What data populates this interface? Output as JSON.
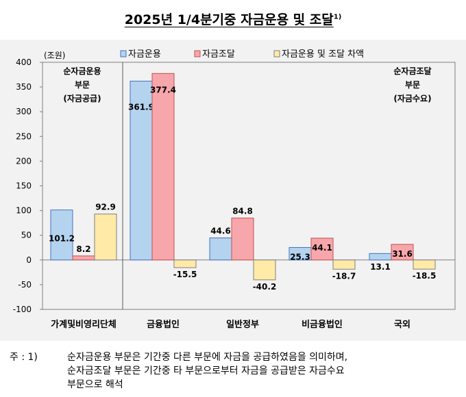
{
  "title": "2025년 1/4분기중 자금운용 및 조달",
  "title_sup": "1)",
  "chart_data": {
    "type": "bar",
    "unit_label": "(조원)",
    "categories": [
      "가계및비영리단체",
      "금융법인",
      "일반정부",
      "비금융법인",
      "국외"
    ],
    "series": [
      {
        "name": "자금운용",
        "values": [
          101.2,
          361.9,
          44.6,
          25.3,
          13.1
        ],
        "color": "#b4d3ee",
        "stroke": "#4472c4"
      },
      {
        "name": "자금조달",
        "values": [
          8.2,
          377.4,
          84.8,
          44.1,
          31.6
        ],
        "color": "#f7a7ab",
        "stroke": "#c0504d"
      },
      {
        "name": "자금운용 및 조달 차액",
        "values": [
          92.9,
          -15.5,
          -40.2,
          -18.7,
          -18.5
        ],
        "color": "#ffeaa8",
        "stroke": "#7f7f7f"
      }
    ],
    "ylim": [
      -100,
      400
    ],
    "yticks": [
      400,
      350,
      300,
      250,
      200,
      150,
      100,
      50,
      0,
      -50,
      -100
    ],
    "grid": false,
    "legend_position": "top"
  },
  "annotations": {
    "left_box": [
      "순자금운용",
      "부문",
      "(자금공급)"
    ],
    "right_box": [
      "순자금조달",
      "부문",
      "(자금수요)"
    ]
  },
  "note": {
    "lead": "주 : 1)",
    "lines": [
      "순자금운용 부문은 기간중 다른 부문에 자금을 공급하였음을 의미하며,",
      "순자금조달 부문은 기간중 타 부문으로부터 자금을 공급받은 자금수요",
      "부문으로 해석"
    ]
  }
}
